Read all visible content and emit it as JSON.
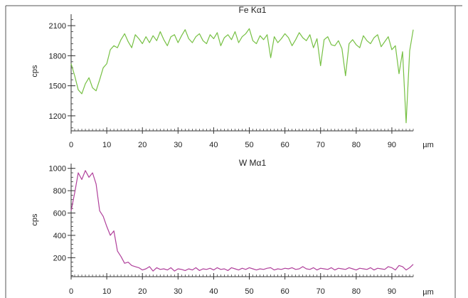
{
  "chart_data": [
    {
      "type": "line",
      "title": "Fe Kα1",
      "xlabel": "",
      "ylabel": "cps",
      "x_unit": "µm",
      "xlim": [
        0,
        96
      ],
      "ylim": [
        1050,
        2200
      ],
      "x_ticks": [
        0,
        10,
        20,
        30,
        40,
        50,
        60,
        70,
        80,
        90
      ],
      "y_ticks": [
        1200,
        1500,
        1800,
        2100
      ],
      "grid": false,
      "color": "#76c043",
      "series": [
        {
          "x": [
            0,
            1,
            2,
            3,
            4,
            5,
            6,
            7,
            8,
            9,
            10,
            11,
            12,
            13,
            14,
            15,
            16,
            17,
            18,
            19,
            20,
            21,
            22,
            23,
            24,
            25,
            26,
            27,
            28,
            29,
            30,
            31,
            32,
            33,
            34,
            35,
            36,
            37,
            38,
            39,
            40,
            41,
            42,
            43,
            44,
            45,
            46,
            47,
            48,
            49,
            50,
            51,
            52,
            53,
            54,
            55,
            56,
            57,
            58,
            59,
            60,
            61,
            62,
            63,
            64,
            65,
            66,
            67,
            68,
            69,
            70,
            71,
            72,
            73,
            74,
            75,
            76,
            77,
            78,
            79,
            80,
            81,
            82,
            83,
            84,
            85,
            86,
            87,
            88,
            89,
            90,
            91,
            92,
            93,
            94,
            95,
            96
          ],
          "y": [
            1720,
            1600,
            1460,
            1420,
            1520,
            1580,
            1480,
            1450,
            1560,
            1680,
            1720,
            1860,
            1900,
            1880,
            1960,
            2020,
            1940,
            1880,
            2010,
            1970,
            1920,
            1990,
            1930,
            2000,
            1950,
            2040,
            1960,
            1900,
            1990,
            2010,
            1930,
            2000,
            2060,
            1970,
            1930,
            1990,
            2020,
            1950,
            1920,
            2010,
            1970,
            2030,
            1900,
            1980,
            2010,
            1960,
            2040,
            1930,
            1990,
            2020,
            2070,
            1950,
            1920,
            2000,
            1960,
            2010,
            1780,
            1990,
            1930,
            1970,
            2020,
            1980,
            1900,
            1960,
            2030,
            1980,
            1950,
            2010,
            1880,
            1970,
            1700,
            1960,
            1990,
            1910,
            1900,
            1950,
            1870,
            1600,
            1920,
            1960,
            1910,
            1880,
            2000,
            1950,
            1920,
            1980,
            2010,
            1890,
            1940,
            1990,
            1860,
            1900,
            1620,
            1840,
            1130,
            1850,
            2060
          ]
        }
      ]
    },
    {
      "type": "line",
      "title": "W Mα1",
      "xlabel": "",
      "ylabel": "cps",
      "x_unit": "µm",
      "xlim": [
        0,
        96
      ],
      "ylim": [
        30,
        1030
      ],
      "x_ticks": [
        0,
        10,
        20,
        30,
        40,
        50,
        60,
        70,
        80,
        90
      ],
      "y_ticks": [
        200,
        400,
        600,
        800,
        1000
      ],
      "grid": false,
      "color": "#b0409b",
      "series": [
        {
          "x": [
            0,
            1,
            2,
            3,
            4,
            5,
            6,
            7,
            8,
            9,
            10,
            11,
            12,
            13,
            14,
            15,
            16,
            17,
            18,
            19,
            20,
            21,
            22,
            23,
            24,
            25,
            26,
            27,
            28,
            29,
            30,
            31,
            32,
            33,
            34,
            35,
            36,
            37,
            38,
            39,
            40,
            41,
            42,
            43,
            44,
            45,
            46,
            47,
            48,
            49,
            50,
            51,
            52,
            53,
            54,
            55,
            56,
            57,
            58,
            59,
            60,
            61,
            62,
            63,
            64,
            65,
            66,
            67,
            68,
            69,
            70,
            71,
            72,
            73,
            74,
            75,
            76,
            77,
            78,
            79,
            80,
            81,
            82,
            83,
            84,
            85,
            86,
            87,
            88,
            89,
            90,
            91,
            92,
            93,
            94,
            95,
            96
          ],
          "y": [
            620,
            780,
            960,
            900,
            980,
            920,
            960,
            860,
            620,
            570,
            480,
            400,
            440,
            260,
            210,
            150,
            160,
            130,
            120,
            110,
            90,
            100,
            120,
            80,
            110,
            95,
            100,
            90,
            110,
            80,
            100,
            95,
            85,
            100,
            90,
            110,
            85,
            100,
            95,
            105,
            90,
            110,
            95,
            100,
            85,
            110,
            100,
            90,
            105,
            95,
            110,
            100,
            90,
            100,
            95,
            105,
            110,
            90,
            100,
            95,
            105,
            100,
            110,
            95,
            100,
            120,
            100,
            95,
            110,
            90,
            105,
            100,
            95,
            110,
            90,
            105,
            100,
            95,
            110,
            100,
            90,
            105,
            100,
            95,
            110,
            90,
            105,
            100,
            95,
            120,
            110,
            90,
            130,
            120,
            90,
            110,
            140
          ]
        }
      ]
    }
  ]
}
